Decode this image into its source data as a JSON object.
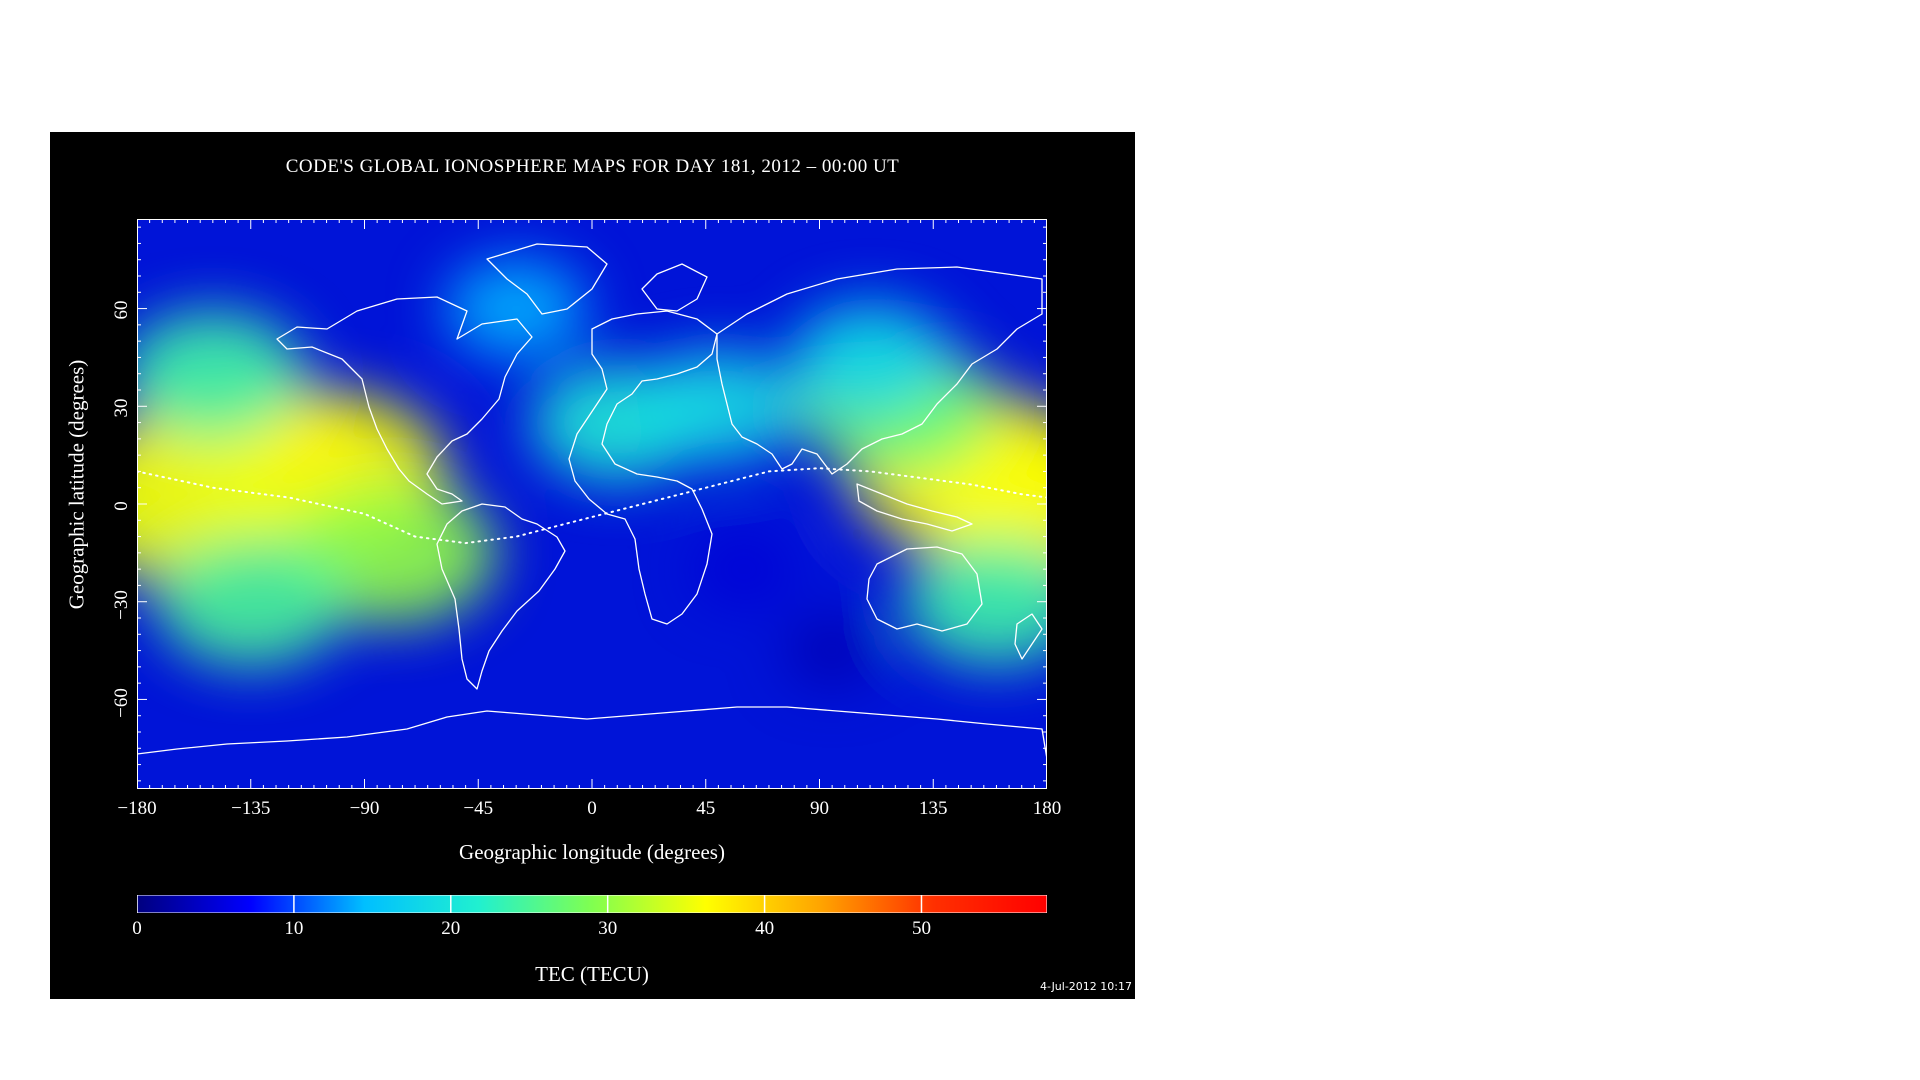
{
  "title": "CODE'S GLOBAL IONOSPHERE MAPS FOR DAY 181, 2012 – 00:00 UT",
  "timestamp": "4-Jul-2012 10:17",
  "colors": {
    "background": "#000000",
    "text": "#ffffff",
    "coastline": "#ffffff"
  },
  "chart_data": {
    "type": "heatmap",
    "title": "CODE'S GLOBAL IONOSPHERE MAPS FOR DAY 181, 2012 – 00:00 UT",
    "xlabel": "Geographic longitude (degrees)",
    "ylabel": "Geographic latitude (degrees)",
    "xlim": [
      -180,
      180
    ],
    "ylim": [
      -87.5,
      87.5
    ],
    "x_ticks": [
      -180,
      -135,
      -90,
      -45,
      0,
      45,
      90,
      135,
      180
    ],
    "y_ticks": [
      -60,
      -30,
      0,
      30,
      60
    ],
    "x_tick_labels": [
      "−180",
      "−135",
      "−90",
      "−45",
      "0",
      "45",
      "90",
      "135",
      "180"
    ],
    "y_tick_labels": [
      "−60",
      "−30",
      "0",
      "30",
      "60"
    ],
    "colorbar": {
      "label": "TEC (TECU)",
      "range": [
        0,
        58
      ],
      "ticks": [
        0,
        10,
        20,
        30,
        40,
        50
      ],
      "colormap": [
        "#00007f",
        "#0000ff",
        "#00bfff",
        "#20f0d0",
        "#80ff50",
        "#ffff00",
        "#ffa500",
        "#ff3000",
        "#ff0000"
      ]
    },
    "tec_blobs": [
      {
        "lon": -140,
        "lat": 12,
        "tec": 42
      },
      {
        "lon": -105,
        "lat": 10,
        "tec": 36
      },
      {
        "lon": -165,
        "lat": 0,
        "tec": 35
      },
      {
        "lon": -80,
        "lat": -15,
        "tec": 30
      },
      {
        "lon": -150,
        "lat": 40,
        "tec": 24
      },
      {
        "lon": -135,
        "lat": -30,
        "tec": 25
      },
      {
        "lon": 10,
        "lat": 25,
        "tec": 21
      },
      {
        "lon": 50,
        "lat": 30,
        "tec": 19
      },
      {
        "lon": 150,
        "lat": 10,
        "tec": 37
      },
      {
        "lon": 175,
        "lat": 0,
        "tec": 36
      },
      {
        "lon": 120,
        "lat": 30,
        "tec": 27
      },
      {
        "lon": 160,
        "lat": -30,
        "tec": 24
      },
      {
        "lon": 110,
        "lat": 45,
        "tec": 18
      },
      {
        "lon": -30,
        "lat": 60,
        "tec": 14
      },
      {
        "lon": 95,
        "lat": -45,
        "tec": 3
      },
      {
        "lon": 60,
        "lat": -20,
        "tec": 5
      }
    ],
    "magnetic_equator": [
      [
        -180,
        10
      ],
      [
        -150,
        5
      ],
      [
        -120,
        2
      ],
      [
        -90,
        -3
      ],
      [
        -70,
        -10
      ],
      [
        -50,
        -12
      ],
      [
        -30,
        -10
      ],
      [
        -10,
        -6
      ],
      [
        10,
        -2
      ],
      [
        30,
        2
      ],
      [
        50,
        6
      ],
      [
        70,
        10
      ],
      [
        90,
        11
      ],
      [
        110,
        10
      ],
      [
        130,
        8
      ],
      [
        150,
        6
      ],
      [
        170,
        3
      ],
      [
        180,
        2
      ]
    ]
  }
}
